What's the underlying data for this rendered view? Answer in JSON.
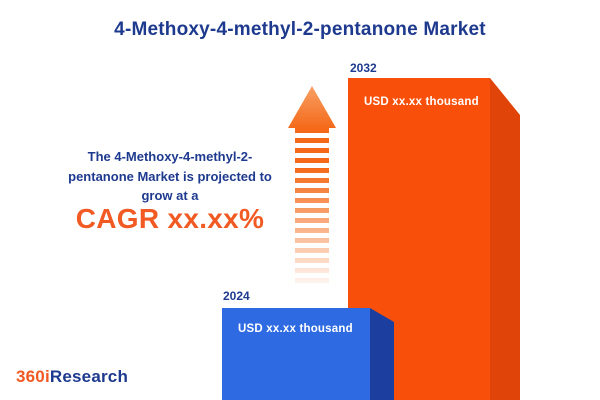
{
  "title": "4-Methoxy-4-methyl-2-pentanone  Market",
  "annotation": {
    "line1": "The 4-Methoxy-4-methyl-2-",
    "line2": "pentanone Market is projected to",
    "line3": "grow at a",
    "cagr": "CAGR xx.xx%"
  },
  "bars": {
    "b2024": {
      "year": "2024",
      "value_label": "USD xx.xx thousand"
    },
    "b2032": {
      "year": "2032",
      "value_label": "USD xx.xx thousand"
    }
  },
  "logo": {
    "part1": "360i",
    "part2": "Research"
  },
  "colors": {
    "navy": "#1e3a8f",
    "accent_orange": "#f15a22",
    "bar_blue": "#2e6be2",
    "bar_blue_side": "#1c3f9f",
    "bar_orange": "#f8500b",
    "bar_orange_side": "#e04408"
  },
  "chart_data": {
    "type": "bar",
    "categories": [
      "2024",
      "2032"
    ],
    "series": [
      {
        "name": "4-Methoxy-4-methyl-2-pentanone Market size",
        "values": [
          null,
          null
        ],
        "value_labels": [
          "USD xx.xx thousand",
          "USD xx.xx thousand"
        ],
        "relative_heights": [
          0.29,
          1.0
        ]
      }
    ],
    "title": "4-Methoxy-4-methyl-2-pentanone  Market",
    "xlabel": "",
    "ylabel": "",
    "annotation": "The 4-Methoxy-4-methyl-2-pentanone Market is projected to grow at a CAGR xx.xx%",
    "legend": false,
    "grid": false,
    "bar_colors": [
      "#2e6be2",
      "#f8500b"
    ]
  }
}
